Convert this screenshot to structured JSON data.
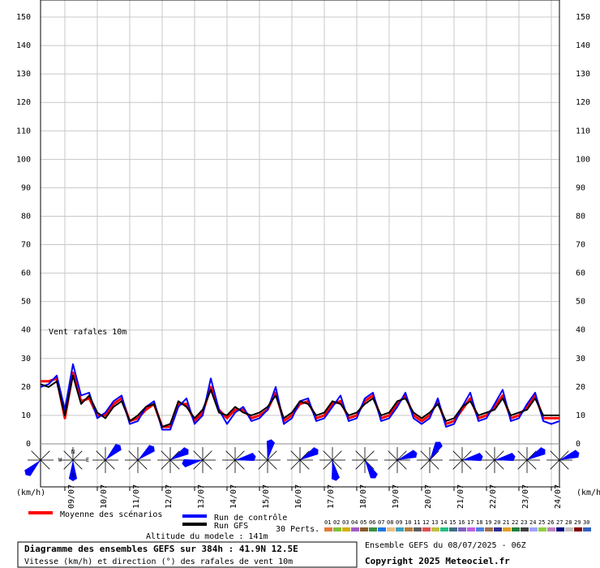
{
  "chart_data": {
    "type": "line",
    "series_label": "Vent rafales 10m",
    "unit_left": "(km/h)",
    "unit_right": "(km/h)",
    "categories": [
      null,
      null,
      null,
      "09/07",
      null,
      null,
      null,
      "10/07",
      null,
      null,
      null,
      "11/07",
      null,
      null,
      null,
      "12/07",
      null,
      null,
      null,
      "13/07",
      null,
      null,
      null,
      "14/07",
      null,
      null,
      null,
      "15/07",
      null,
      null,
      null,
      "16/07",
      null,
      null,
      null,
      "17/07",
      null,
      null,
      null,
      "18/07",
      null,
      null,
      null,
      "19/07",
      null,
      null,
      null,
      "20/07",
      null,
      null,
      null,
      "21/07",
      null,
      null,
      null,
      "22/07",
      null,
      null,
      null,
      "23/07",
      null,
      null,
      null,
      "24/07",
      null
    ],
    "ylim": [
      0,
      156
    ],
    "yticks": [
      0,
      10,
      20,
      30,
      40,
      50,
      60,
      70,
      80,
      90,
      100,
      110,
      120,
      130,
      140,
      150
    ],
    "grid": true,
    "series": [
      {
        "name": "Moyenne des scénarios",
        "color": "#ff0000",
        "values": [
          22,
          22,
          23,
          9,
          25,
          15,
          16,
          10,
          10,
          14,
          16,
          8,
          9,
          12,
          14,
          6,
          6,
          14,
          14,
          8,
          11,
          20,
          12,
          9,
          12,
          12,
          9,
          10,
          12,
          18,
          8,
          10,
          14,
          15,
          9,
          10,
          14,
          15,
          9,
          10,
          15,
          17,
          9,
          10,
          14,
          17,
          10,
          8,
          10,
          15,
          7,
          8,
          12,
          16,
          9,
          10,
          13,
          17,
          9,
          10,
          13,
          17,
          9,
          9,
          9
        ]
      },
      {
        "name": "Run de contrôle",
        "color": "#0000ff",
        "values": [
          20,
          21,
          24,
          12,
          28,
          17,
          18,
          9,
          11,
          15,
          17,
          7,
          8,
          13,
          15,
          5,
          5,
          13,
          16,
          7,
          10,
          23,
          12,
          7,
          11,
          13,
          8,
          9,
          12,
          20,
          7,
          9,
          15,
          16,
          8,
          9,
          13,
          17,
          8,
          9,
          16,
          18,
          8,
          9,
          13,
          18,
          9,
          7,
          9,
          16,
          6,
          7,
          13,
          18,
          8,
          9,
          14,
          19,
          8,
          9,
          14,
          18,
          8,
          7,
          8
        ]
      },
      {
        "name": "Run GFS",
        "color": "#000000",
        "values": [
          21,
          20,
          22,
          10,
          24,
          14,
          17,
          11,
          9,
          13,
          15,
          8,
          10,
          13,
          14,
          6,
          7,
          15,
          13,
          9,
          12,
          19,
          11,
          10,
          13,
          11,
          10,
          11,
          13,
          17,
          9,
          11,
          15,
          14,
          10,
          11,
          15,
          14,
          10,
          11,
          14,
          16,
          10,
          11,
          15,
          16,
          11,
          9,
          11,
          14,
          8,
          9,
          13,
          15,
          10,
          11,
          12,
          16,
          10,
          11,
          12,
          16,
          10,
          10,
          10
        ]
      }
    ],
    "wind_direction": [
      225,
      180,
      45,
      50,
      60,
      260,
      80,
      10,
      60,
      170,
      150,
      70,
      30,
      80,
      80,
      60,
      70
    ],
    "compass": [
      "N",
      "W",
      "E",
      "S"
    ],
    "perturbation_count_label": "30 Perts.",
    "perturbations": [
      {
        "label": "01",
        "color": "#e07b39"
      },
      {
        "label": "02",
        "color": "#7fbf3f"
      },
      {
        "label": "03",
        "color": "#d4b000"
      },
      {
        "label": "04",
        "color": "#a05ac8"
      },
      {
        "label": "05",
        "color": "#8b5a2b"
      },
      {
        "label": "06",
        "color": "#3f8f3f"
      },
      {
        "label": "07",
        "color": "#1f77e4"
      },
      {
        "label": "08",
        "color": "#e8c080"
      },
      {
        "label": "09",
        "color": "#40a0c0"
      },
      {
        "label": "10",
        "color": "#b08040"
      },
      {
        "label": "11",
        "color": "#606060"
      },
      {
        "label": "12",
        "color": "#e05050"
      },
      {
        "label": "13",
        "color": "#c0c040"
      },
      {
        "label": "14",
        "color": "#20c080"
      },
      {
        "label": "15",
        "color": "#407080"
      },
      {
        "label": "16",
        "color": "#8060c0"
      },
      {
        "label": "17",
        "color": "#c060e0"
      },
      {
        "label": "18",
        "color": "#5080e0"
      },
      {
        "label": "19",
        "color": "#a07050"
      },
      {
        "label": "20",
        "color": "#303090"
      },
      {
        "label": "21",
        "color": "#e0a020"
      },
      {
        "label": "22",
        "color": "#208040"
      },
      {
        "label": "23",
        "color": "#404040"
      },
      {
        "label": "24",
        "color": "#a0a0ff"
      },
      {
        "label": "25",
        "color": "#90d040"
      },
      {
        "label": "26",
        "color": "#c080c0"
      },
      {
        "label": "27",
        "color": "#000080"
      },
      {
        "label": "28",
        "color": "#c0c0c0"
      },
      {
        "label": "29",
        "color": "#800000"
      },
      {
        "label": "30",
        "color": "#3060c0"
      }
    ],
    "altitude": "Altitude du modele : 141m",
    "title": "Diagramme des ensembles GEFS sur 384h : 41.9N 12.5E",
    "subtitle": "Vitesse (km/h) et direction (°) des rafales de vent 10m",
    "run_info": "Ensemble GEFS du 08/07/2025 - 06Z",
    "copyright": "Copyright 2025 Meteociel.fr"
  }
}
